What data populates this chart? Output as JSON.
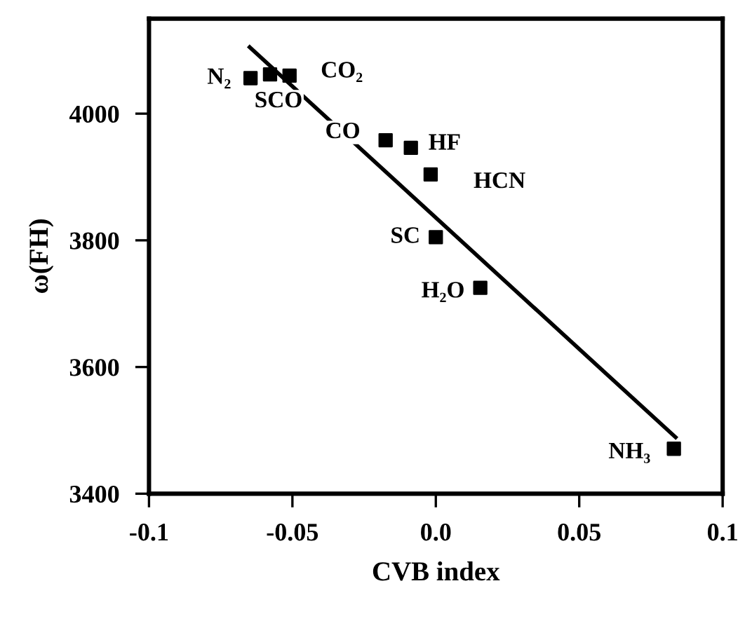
{
  "chart_data": {
    "type": "scatter",
    "xlabel": "CVB index",
    "ylabel": "ω(FH)",
    "xlim": [
      -0.1,
      0.1
    ],
    "ylim": [
      3400,
      4150
    ],
    "xticks": [
      -0.1,
      -0.05,
      {
        "value": 0,
        "label": "0.0"
      },
      0.05,
      0.1
    ],
    "yticks": [
      3400,
      3600,
      3800,
      4000
    ],
    "grid": false,
    "legend": false,
    "series": [
      {
        "marker": "square",
        "color": "#000000",
        "x": [
          -0.0646,
          -0.0578,
          -0.051,
          -0.0175,
          -0.0087,
          -0.0018,
          0.0,
          0.0155,
          0.083
        ],
        "values": [
          4056,
          4062,
          4060,
          3958,
          3946,
          3904,
          3805,
          3725,
          3471
        ]
      },
      {
        "type": "line",
        "marker": "none",
        "color": "#000000",
        "x": [
          -0.0649,
          0.0836
        ],
        "values": [
          4105,
          3489
        ]
      }
    ],
    "annotations": [
      {
        "text": "N₂",
        "x": -0.0646,
        "y": 4056
      },
      {
        "text": "SCO",
        "x": -0.0578,
        "y": 4062
      },
      {
        "text": "CO₂",
        "x": -0.051,
        "y": 4060
      },
      {
        "text": "CO",
        "x": -0.0175,
        "y": 3958
      },
      {
        "text": "HF",
        "x": -0.0087,
        "y": 3946
      },
      {
        "text": "HCN",
        "x": -0.0018,
        "y": 3904
      },
      {
        "text": "SC",
        "x": 0.0,
        "y": 3805
      },
      {
        "text": "H₂O",
        "x": 0.0155,
        "y": 3725
      },
      {
        "text": "NH₃",
        "x": 0.083,
        "y": 3471
      }
    ]
  }
}
